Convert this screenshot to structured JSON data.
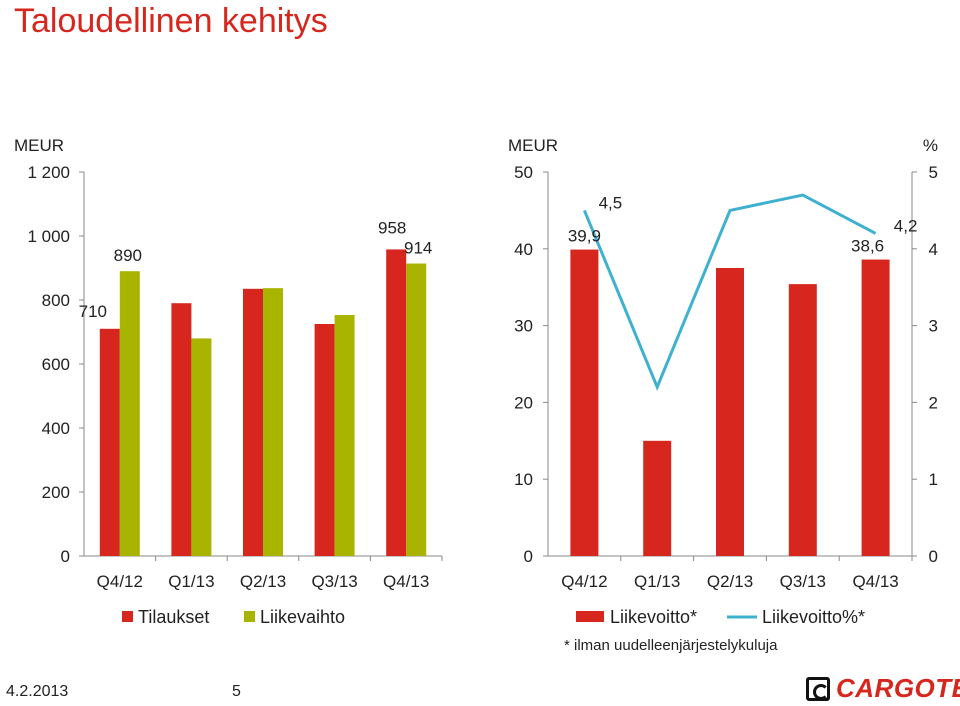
{
  "page": {
    "title": "Taloudellinen kehitys",
    "footer_date": "4.2.2013",
    "footer_page": "5",
    "logo_text": "CARGOTEC",
    "footnote": "* ilman uudelleenjärjestelykuluja"
  },
  "colors": {
    "red": "#d7261e",
    "green": "#a9b400",
    "line": "#3eb1cf",
    "axis": "#888888"
  },
  "chart_data": [
    {
      "type": "bar",
      "ylabel": "MEUR",
      "ylim": [
        0,
        1200
      ],
      "yticks": [
        0,
        200,
        400,
        600,
        800,
        1000,
        1200
      ],
      "ytick_labels": [
        "0",
        "200",
        "400",
        "600",
        "800",
        "1 000",
        "1 200"
      ],
      "categories": [
        "Q4/12",
        "Q1/13",
        "Q2/13",
        "Q3/13",
        "Q4/13"
      ],
      "series": [
        {
          "name": "Tilaukset",
          "color": "#d7261e",
          "values": [
            710,
            790,
            835,
            725,
            958
          ]
        },
        {
          "name": "Liikevaihto",
          "color": "#a9b400",
          "values": [
            890,
            680,
            837,
            753,
            914
          ]
        }
      ],
      "data_labels": [
        {
          "series": 0,
          "index": 0,
          "text": "710"
        },
        {
          "series": 1,
          "index": 0,
          "text": "890"
        },
        {
          "series": 0,
          "index": 4,
          "text": "958"
        },
        {
          "series": 1,
          "index": 4,
          "text": "914"
        }
      ],
      "legend": "bottom"
    },
    {
      "type": "bar",
      "ylabel": "MEUR",
      "ylabel_right": "%",
      "ylim": [
        0,
        50
      ],
      "yticks": [
        0,
        10,
        20,
        30,
        40,
        50
      ],
      "ylim_right": [
        0,
        5
      ],
      "yticks_right": [
        0,
        1,
        2,
        3,
        4,
        5
      ],
      "categories": [
        "Q4/12",
        "Q1/13",
        "Q2/13",
        "Q3/13",
        "Q4/13"
      ],
      "series": [
        {
          "name": "Liikevoitto*",
          "type": "bar",
          "axis": "left",
          "color": "#d7261e",
          "values": [
            39.9,
            15.0,
            37.5,
            35.4,
            38.6
          ]
        },
        {
          "name": "Liikevoitto%*",
          "type": "line",
          "axis": "right",
          "color": "#3eb1cf",
          "values": [
            4.5,
            2.2,
            4.5,
            4.7,
            4.2
          ]
        }
      ],
      "data_labels": [
        {
          "series": 0,
          "index": 0,
          "text": "39,9"
        },
        {
          "series": 1,
          "index": 0,
          "text": "4,5"
        },
        {
          "series": 0,
          "index": 4,
          "text": "38,6"
        },
        {
          "series": 1,
          "index": 4,
          "text": "4,2"
        }
      ],
      "legend": "bottom"
    }
  ]
}
